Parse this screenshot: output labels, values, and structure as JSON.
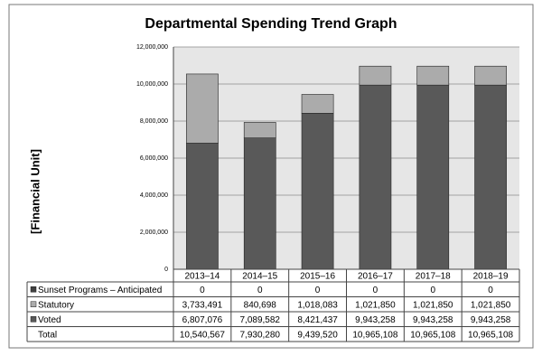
{
  "chart_data": {
    "type": "stacked-bar-table",
    "title": "Departmental Spending Trend Graph",
    "y_label": "[Financial Unit]",
    "categories": [
      "2013–14",
      "2014–15",
      "2015–16",
      "2016–17",
      "2017–18",
      "2018–19"
    ],
    "series": [
      {
        "name": "Sunset Programs – Anticipated",
        "color": "#404040",
        "values": [
          0,
          0,
          0,
          0,
          0,
          0
        ],
        "value_labels": [
          "0",
          "0",
          "0",
          "0",
          "0",
          "0"
        ]
      },
      {
        "name": "Statutory",
        "color": "#ababab",
        "values": [
          3733491,
          840698,
          1018083,
          1021850,
          1021850,
          1021850
        ],
        "value_labels": [
          "3,733,491",
          "840,698",
          "1,018,083",
          "1,021,850",
          "1,021,850",
          "1,021,850"
        ]
      },
      {
        "name": "Voted",
        "color": "#595959",
        "values": [
          6807076,
          7089582,
          8421437,
          9943258,
          9943258,
          9943258
        ],
        "value_labels": [
          "6,807,076",
          "7,089,582",
          "8,421,437",
          "9,943,258",
          "9,943,258",
          "9,943,258"
        ]
      }
    ],
    "total": {
      "name": "Total",
      "values": [
        10540567,
        7930280,
        9439520,
        10965108,
        10965108,
        10965108
      ],
      "value_labels": [
        "10,540,567",
        "7,930,280",
        "9,439,520",
        "10,965,108",
        "10,965,108",
        "10,965,108"
      ]
    },
    "ylim": [
      0,
      12000000
    ],
    "yticks": [
      0,
      {
        "value": 2000000,
        "label": "2,000,000"
      },
      {
        "value": 4000000,
        "label": "4,000,000"
      },
      {
        "value": 6000000,
        "label": "6,000,000"
      },
      {
        "value": 8000000,
        "label": "8,000,000"
      },
      {
        "value": 10000000,
        "label": "10,000,000"
      },
      {
        "value": 12000000,
        "label": "12,000,000"
      }
    ],
    "grid": true
  }
}
